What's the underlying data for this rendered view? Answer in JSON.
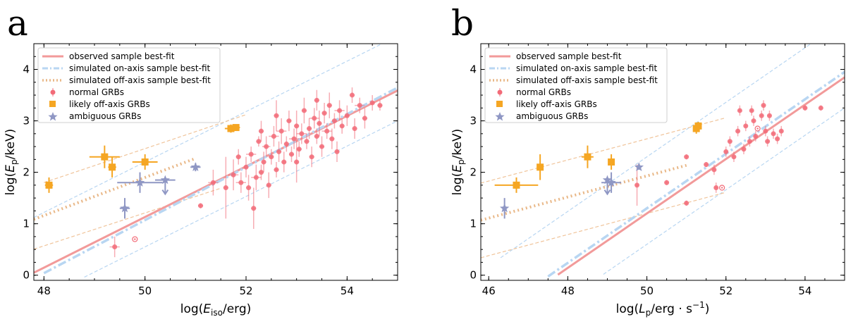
{
  "legend": {
    "observed": "observed sample best-fit",
    "onaxis": "simulated on-axis sample best-fit",
    "offaxis": "simulated off-axis sample best-fit",
    "normal": "normal GRBs",
    "likely": "likely off-axis GRBs",
    "ambiguous": "ambiguous GRBs"
  },
  "colors": {
    "observed": "#f29a9a",
    "onaxis": "#b8d6f2",
    "offaxis": "#e9b888",
    "normal": "#f26b78",
    "likely": "#f5a623",
    "ambiguous": "#8f97c4",
    "band_on": "#b8d6f2",
    "band_off": "#f0c49a"
  },
  "chart_data": [
    {
      "type": "scatter",
      "panel_label": "a",
      "title": "",
      "xlabel_prefix": "log(",
      "xlabel_var": "E",
      "xlabel_sub": "iso",
      "xlabel_suffix": "/erg)",
      "ylabel_prefix": "log(",
      "ylabel_var": "E",
      "ylabel_sub": "p",
      "ylabel_suffix": "/keV)",
      "xlim": [
        47.8,
        55.0
      ],
      "ylim": [
        -0.1,
        4.5
      ],
      "xticks": [
        48,
        50,
        52,
        54
      ],
      "yticks": [
        0,
        1,
        2,
        3,
        4
      ],
      "legend_position": "top-left",
      "lines": {
        "observed": {
          "slope": 0.492,
          "intercept": -23.47,
          "x_range": [
            47.8,
            55.0
          ]
        },
        "onaxis": {
          "slope": 0.515,
          "intercept": -24.68,
          "x_range": [
            48.0,
            55.0
          ]
        },
        "onaxis_band_upper": {
          "slope": 0.49,
          "intercept": -22.3,
          "x_range": [
            47.8,
            55.0
          ]
        },
        "onaxis_band_lower": {
          "slope": 0.49,
          "intercept": -23.95,
          "x_range": [
            48.8,
            55.0
          ]
        },
        "offaxis": {
          "slope": 0.37,
          "intercept": -16.6,
          "x_range": [
            47.8,
            51.0
          ]
        },
        "offaxis_band_upper": {
          "slope": 0.33,
          "intercept": -14.04,
          "x_range": [
            48.0,
            52.0
          ]
        },
        "offaxis_band_lower": {
          "slope": 0.32,
          "intercept": -14.79,
          "x_range": [
            47.8,
            51.5
          ]
        }
      },
      "likely": [
        {
          "x": 48.1,
          "y": 1.75,
          "xerr": 0.08,
          "yerr": 0.15
        },
        {
          "x": 49.2,
          "y": 2.3,
          "xerr": 0.3,
          "yerr": 0.22
        },
        {
          "x": 49.35,
          "y": 2.1,
          "xerr": 0.08,
          "yerr": 0.2
        },
        {
          "x": 50.0,
          "y": 2.2,
          "xerr": 0.25,
          "yerr": 0.15
        },
        {
          "x": 51.7,
          "y": 2.85,
          "xerr": 0.12,
          "yerr": 0.08
        },
        {
          "x": 51.8,
          "y": 2.87,
          "xerr": 0.08,
          "yerr": 0.06
        }
      ],
      "ambiguous": [
        {
          "x": 49.6,
          "y": 1.3,
          "xerr": 0.1,
          "yerr": 0.2
        },
        {
          "x": 49.9,
          "y": 1.8,
          "xerr": 0.45,
          "yerr": 0.2
        },
        {
          "x": 50.4,
          "y": 1.85,
          "xerr": 0.2,
          "yerr": 0.05,
          "upper_limit": true
        },
        {
          "x": 51.0,
          "y": 2.1,
          "xerr": 0.1,
          "yerr": 0.08
        }
      ],
      "normal": [
        {
          "x": 49.4,
          "y": 0.55,
          "xerr": 0.1,
          "yerr": 0.2
        },
        {
          "x": 49.8,
          "y": 0.7,
          "xerr": 0,
          "yerr": 0,
          "open": true
        },
        {
          "x": 51.1,
          "y": 1.35,
          "xerr": 0.05,
          "yerr": 0.05
        },
        {
          "x": 51.35,
          "y": 1.8,
          "xerr": 0.1,
          "yerr": 0.25
        },
        {
          "x": 51.6,
          "y": 1.7,
          "xerr": 0.05,
          "yerr": 0.6
        },
        {
          "x": 51.75,
          "y": 1.95,
          "xerr": 0.1,
          "yerr": 0.3
        },
        {
          "x": 51.85,
          "y": 2.3,
          "xerr": 0.05,
          "yerr": 0.15
        },
        {
          "x": 51.9,
          "y": 1.8,
          "xerr": 0.1,
          "yerr": 0.2
        },
        {
          "x": 52.0,
          "y": 2.1,
          "xerr": 0.05,
          "yerr": 0.2
        },
        {
          "x": 52.05,
          "y": 1.7,
          "xerr": 0.05,
          "yerr": 0.25
        },
        {
          "x": 52.1,
          "y": 2.35,
          "xerr": 0.1,
          "yerr": 0.15
        },
        {
          "x": 52.15,
          "y": 1.3,
          "xerr": 0.05,
          "yerr": 0.4
        },
        {
          "x": 52.2,
          "y": 1.9,
          "xerr": 0.1,
          "yerr": 0.25
        },
        {
          "x": 52.25,
          "y": 2.6,
          "xerr": 0.05,
          "yerr": 0.1
        },
        {
          "x": 52.3,
          "y": 2.0,
          "xerr": 0.05,
          "yerr": 0.15
        },
        {
          "x": 52.35,
          "y": 2.2,
          "xerr": 0.05,
          "yerr": 0.2
        },
        {
          "x": 52.4,
          "y": 2.5,
          "xerr": 0.08,
          "yerr": 0.2
        },
        {
          "x": 52.45,
          "y": 1.75,
          "xerr": 0.05,
          "yerr": 0.25
        },
        {
          "x": 52.5,
          "y": 2.3,
          "xerr": 0.05,
          "yerr": 0.15
        },
        {
          "x": 52.55,
          "y": 2.7,
          "xerr": 0.1,
          "yerr": 0.2
        },
        {
          "x": 52.6,
          "y": 2.05,
          "xerr": 0.05,
          "yerr": 0.15
        },
        {
          "x": 52.65,
          "y": 2.4,
          "xerr": 0.05,
          "yerr": 0.2
        },
        {
          "x": 52.7,
          "y": 2.8,
          "xerr": 0.1,
          "yerr": 0.25
        },
        {
          "x": 52.75,
          "y": 2.2,
          "xerr": 0.05,
          "yerr": 0.2
        },
        {
          "x": 52.8,
          "y": 2.55,
          "xerr": 0.05,
          "yerr": 0.15
        },
        {
          "x": 52.85,
          "y": 3.0,
          "xerr": 0.05,
          "yerr": 0.2
        },
        {
          "x": 52.9,
          "y": 2.35,
          "xerr": 0.05,
          "yerr": 0.15
        },
        {
          "x": 52.95,
          "y": 2.65,
          "xerr": 0.1,
          "yerr": 0.2
        },
        {
          "x": 53.0,
          "y": 2.9,
          "xerr": 0.05,
          "yerr": 0.3
        },
        {
          "x": 53.05,
          "y": 2.45,
          "xerr": 0.05,
          "yerr": 0.15
        },
        {
          "x": 53.1,
          "y": 2.75,
          "xerr": 0.1,
          "yerr": 0.2
        },
        {
          "x": 53.15,
          "y": 3.2,
          "xerr": 0.05,
          "yerr": 0.25
        },
        {
          "x": 53.2,
          "y": 2.6,
          "xerr": 0.05,
          "yerr": 0.15
        },
        {
          "x": 53.25,
          "y": 2.85,
          "xerr": 0.05,
          "yerr": 0.2
        },
        {
          "x": 53.3,
          "y": 2.3,
          "xerr": 0.05,
          "yerr": 0.2
        },
        {
          "x": 53.35,
          "y": 3.05,
          "xerr": 0.1,
          "yerr": 0.2
        },
        {
          "x": 53.4,
          "y": 2.7,
          "xerr": 0.05,
          "yerr": 0.15
        },
        {
          "x": 53.45,
          "y": 2.95,
          "xerr": 0.05,
          "yerr": 0.25
        },
        {
          "x": 53.5,
          "y": 2.5,
          "xerr": 0.05,
          "yerr": 0.2
        },
        {
          "x": 53.55,
          "y": 3.15,
          "xerr": 0.05,
          "yerr": 0.2
        },
        {
          "x": 53.6,
          "y": 2.8,
          "xerr": 0.1,
          "yerr": 0.15
        },
        {
          "x": 53.65,
          "y": 3.3,
          "xerr": 0.05,
          "yerr": 0.25
        },
        {
          "x": 53.7,
          "y": 2.65,
          "xerr": 0.05,
          "yerr": 0.2
        },
        {
          "x": 53.75,
          "y": 3.0,
          "xerr": 0.05,
          "yerr": 0.15
        },
        {
          "x": 53.8,
          "y": 2.4,
          "xerr": 0.05,
          "yerr": 0.2
        },
        {
          "x": 53.85,
          "y": 3.2,
          "xerr": 0.1,
          "yerr": 0.2
        },
        {
          "x": 53.9,
          "y": 2.9,
          "xerr": 0.05,
          "yerr": 0.15
        },
        {
          "x": 54.0,
          "y": 3.1,
          "xerr": 0.05,
          "yerr": 0.2
        },
        {
          "x": 54.1,
          "y": 3.5,
          "xerr": 0.05,
          "yerr": 0.15
        },
        {
          "x": 54.15,
          "y": 2.85,
          "xerr": 0.05,
          "yerr": 0.2
        },
        {
          "x": 54.25,
          "y": 3.3,
          "xerr": 0.1,
          "yerr": 0.15
        },
        {
          "x": 54.35,
          "y": 3.05,
          "xerr": 0.05,
          "yerr": 0.2
        },
        {
          "x": 54.5,
          "y": 3.35,
          "xerr": 0.05,
          "yerr": 0.15
        },
        {
          "x": 54.65,
          "y": 3.3,
          "xerr": 0.05,
          "yerr": 0.1
        },
        {
          "x": 52.6,
          "y": 3.1,
          "xerr": 0.05,
          "yerr": 0.3
        },
        {
          "x": 53.0,
          "y": 2.2,
          "xerr": 0.05,
          "yerr": 0.4
        },
        {
          "x": 52.3,
          "y": 2.8,
          "xerr": 0.05,
          "yerr": 0.2
        },
        {
          "x": 53.4,
          "y": 3.4,
          "xerr": 0.05,
          "yerr": 0.2
        }
      ]
    },
    {
      "type": "scatter",
      "panel_label": "b",
      "title": "",
      "xlabel_prefix": "log(",
      "xlabel_var": "L",
      "xlabel_sub": "p",
      "xlabel_suffix": "/erg · s",
      "xlabel_sup": "−1",
      "xlabel_end": ")",
      "ylabel_prefix": "log(",
      "ylabel_var": "E",
      "ylabel_sub": "p",
      "ylabel_suffix": "/keV)",
      "xlim": [
        45.8,
        55.0
      ],
      "ylim": [
        -0.1,
        4.5
      ],
      "xticks": [
        46,
        48,
        50,
        52,
        54
      ],
      "yticks": [
        0,
        1,
        2,
        3,
        4
      ],
      "legend_position": "top-left",
      "lines": {
        "observed": {
          "slope": 0.529,
          "intercept": -25.25,
          "x_range": [
            47.75,
            55.0
          ]
        },
        "onaxis": {
          "slope": 0.53,
          "intercept": -25.2,
          "x_range": [
            47.5,
            55.0
          ]
        },
        "onaxis_band_upper": {
          "slope": 0.53,
          "intercept": -24.2,
          "x_range": [
            46.3,
            54.6
          ]
        },
        "onaxis_band_lower": {
          "slope": 0.53,
          "intercept": -25.9,
          "x_range": [
            48.9,
            55.0
          ]
        },
        "offaxis": {
          "slope": 0.205,
          "intercept": -8.32,
          "x_range": [
            45.8,
            51.0
          ]
        },
        "offaxis_band_upper": {
          "slope": 0.205,
          "intercept": -7.6,
          "x_range": [
            45.8,
            52.0
          ]
        },
        "offaxis_band_lower": {
          "slope": 0.205,
          "intercept": -9.05,
          "x_range": [
            45.8,
            52.0
          ]
        }
      },
      "likely": [
        {
          "x": 46.7,
          "y": 1.75,
          "xerr": 0.55,
          "yerr": 0.15
        },
        {
          "x": 47.3,
          "y": 2.1,
          "xerr": 0.05,
          "yerr": 0.25
        },
        {
          "x": 48.5,
          "y": 2.3,
          "xerr": 0.15,
          "yerr": 0.22
        },
        {
          "x": 49.1,
          "y": 2.2,
          "xerr": 0.05,
          "yerr": 0.15
        },
        {
          "x": 51.25,
          "y": 2.85,
          "xerr": 0.05,
          "yerr": 0.1
        },
        {
          "x": 51.3,
          "y": 2.9,
          "xerr": 0.03,
          "yerr": 0.08
        }
      ],
      "ambiguous": [
        {
          "x": 46.4,
          "y": 1.3,
          "xerr": 0.05,
          "yerr": 0.2
        },
        {
          "x": 49.0,
          "y": 1.85,
          "xerr": 0.05,
          "yerr": 0.05,
          "upper_limit": true
        },
        {
          "x": 49.1,
          "y": 1.8,
          "xerr": 0.25,
          "yerr": 0.2
        },
        {
          "x": 49.8,
          "y": 2.1,
          "xerr": 0.05,
          "yerr": 0.05
        }
      ],
      "normal": [
        {
          "x": 49.75,
          "y": 1.75,
          "xerr": 0.05,
          "yerr": 0.4
        },
        {
          "x": 50.5,
          "y": 1.8,
          "xerr": 0.05,
          "yerr": 0.05
        },
        {
          "x": 51.0,
          "y": 1.4,
          "xerr": 0.05,
          "yerr": 0.05
        },
        {
          "x": 51.0,
          "y": 2.3,
          "xerr": 0.05,
          "yerr": 0.05
        },
        {
          "x": 51.5,
          "y": 2.15,
          "xerr": 0.05,
          "yerr": 0.05
        },
        {
          "x": 51.7,
          "y": 2.05,
          "xerr": 0.05,
          "yerr": 0.1
        },
        {
          "x": 51.75,
          "y": 1.7,
          "xerr": 0.05,
          "yerr": 0.1
        },
        {
          "x": 51.9,
          "y": 1.7,
          "xerr": 0,
          "yerr": 0,
          "open": true
        },
        {
          "x": 52.0,
          "y": 2.4,
          "xerr": 0.05,
          "yerr": 0.1
        },
        {
          "x": 52.1,
          "y": 2.6,
          "xerr": 0.05,
          "yerr": 0.1
        },
        {
          "x": 52.2,
          "y": 2.3,
          "xerr": 0.05,
          "yerr": 0.1
        },
        {
          "x": 52.3,
          "y": 2.8,
          "xerr": 0.05,
          "yerr": 0.1
        },
        {
          "x": 52.35,
          "y": 3.2,
          "xerr": 0.05,
          "yerr": 0.1
        },
        {
          "x": 52.45,
          "y": 2.45,
          "xerr": 0.05,
          "yerr": 0.1
        },
        {
          "x": 52.5,
          "y": 2.9,
          "xerr": 0.05,
          "yerr": 0.1
        },
        {
          "x": 52.6,
          "y": 2.6,
          "xerr": 0.05,
          "yerr": 0.1
        },
        {
          "x": 52.7,
          "y": 3.0,
          "xerr": 0.05,
          "yerr": 0.1
        },
        {
          "x": 52.75,
          "y": 2.7,
          "xerr": 0.05,
          "yerr": 0.1
        },
        {
          "x": 52.8,
          "y": 2.85,
          "xerr": 0,
          "yerr": 0,
          "open": true
        },
        {
          "x": 52.9,
          "y": 3.1,
          "xerr": 0.05,
          "yerr": 0.1
        },
        {
          "x": 52.95,
          "y": 3.3,
          "xerr": 0.05,
          "yerr": 0.1
        },
        {
          "x": 53.0,
          "y": 2.8,
          "xerr": 0.05,
          "yerr": 0.1
        },
        {
          "x": 53.05,
          "y": 2.6,
          "xerr": 0.05,
          "yerr": 0.1
        },
        {
          "x": 53.1,
          "y": 3.1,
          "xerr": 0.05,
          "yerr": 0.1
        },
        {
          "x": 53.2,
          "y": 2.75,
          "xerr": 0.05,
          "yerr": 0.1
        },
        {
          "x": 53.3,
          "y": 2.65,
          "xerr": 0.05,
          "yerr": 0.1
        },
        {
          "x": 53.4,
          "y": 2.8,
          "xerr": 0.05,
          "yerr": 0.1
        },
        {
          "x": 54.0,
          "y": 3.25,
          "xerr": 0.05,
          "yerr": 0.05
        },
        {
          "x": 54.4,
          "y": 3.25,
          "xerr": 0.05,
          "yerr": 0.05
        },
        {
          "x": 52.65,
          "y": 3.2,
          "xerr": 0.05,
          "yerr": 0.1
        }
      ]
    }
  ]
}
